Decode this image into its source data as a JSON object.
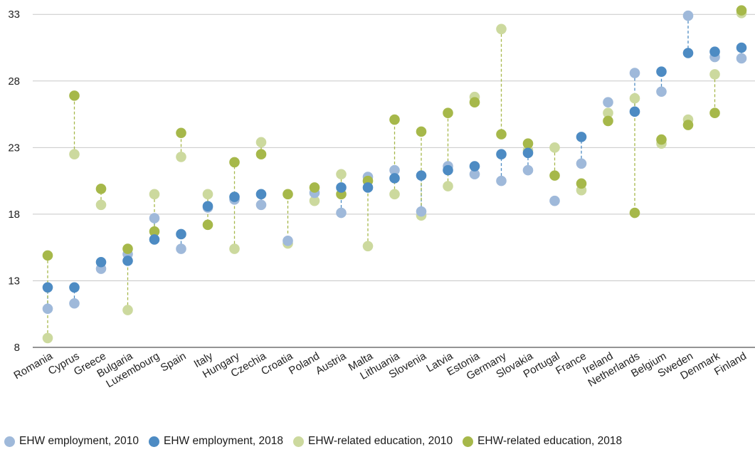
{
  "chart_data": {
    "type": "scatter",
    "categories": [
      "Romania",
      "Cyprus",
      "Greece",
      "Bulgaria",
      "Luxembourg",
      "Spain",
      "Italy",
      "Hungary",
      "Czechia",
      "Croatia",
      "Poland",
      "Austria",
      "Malta",
      "Lithuania",
      "Slovenia",
      "Latvia",
      "Estonia",
      "Germany",
      "Slovakia",
      "Portugal",
      "France",
      "Ireland",
      "Netherlands",
      "Belgium",
      "Sweden",
      "Denmark",
      "Finland"
    ],
    "series": [
      {
        "name": "EHW employment, 2010",
        "color": "#9fb9da",
        "values": [
          10.9,
          11.3,
          13.9,
          15.0,
          17.7,
          15.4,
          18.5,
          19.1,
          18.7,
          16.0,
          19.6,
          18.1,
          20.8,
          21.3,
          18.2,
          21.6,
          21.0,
          20.5,
          21.3,
          19.0,
          21.8,
          26.4,
          28.6,
          27.2,
          32.9,
          29.8,
          29.7
        ]
      },
      {
        "name": "EHW employment, 2018",
        "color": "#4d8bc3",
        "values": [
          12.5,
          12.5,
          14.4,
          14.5,
          16.1,
          16.5,
          18.6,
          19.3,
          19.5,
          null,
          null,
          20.0,
          20.0,
          20.7,
          20.9,
          21.3,
          21.6,
          22.5,
          22.6,
          null,
          23.8,
          null,
          25.7,
          28.7,
          30.1,
          30.2,
          30.5
        ]
      },
      {
        "name": "EHW-related education, 2010",
        "color": "#ccd99e",
        "values": [
          8.7,
          22.5,
          18.7,
          10.8,
          19.5,
          22.3,
          19.5,
          15.4,
          23.4,
          15.8,
          19.0,
          21.0,
          15.6,
          19.5,
          17.9,
          20.1,
          26.8,
          31.9,
          22.8,
          23.0,
          19.8,
          25.6,
          26.7,
          23.3,
          25.1,
          28.5,
          33.1
        ]
      },
      {
        "name": "EHW-related education, 2018",
        "color": "#a6b84a",
        "values": [
          14.9,
          26.9,
          19.9,
          15.4,
          16.7,
          24.1,
          17.2,
          21.9,
          22.5,
          19.5,
          20.0,
          19.5,
          20.5,
          25.1,
          24.2,
          25.6,
          26.4,
          24.0,
          23.3,
          20.9,
          20.3,
          25.0,
          18.1,
          23.6,
          24.7,
          25.6,
          33.3
        ]
      }
    ],
    "yticks": [
      8,
      13,
      18,
      23,
      28,
      33
    ],
    "ylim": [
      8,
      33.6
    ],
    "grid": true,
    "legend_position": "bottom-left",
    "xlabel": "",
    "ylabel": ""
  }
}
